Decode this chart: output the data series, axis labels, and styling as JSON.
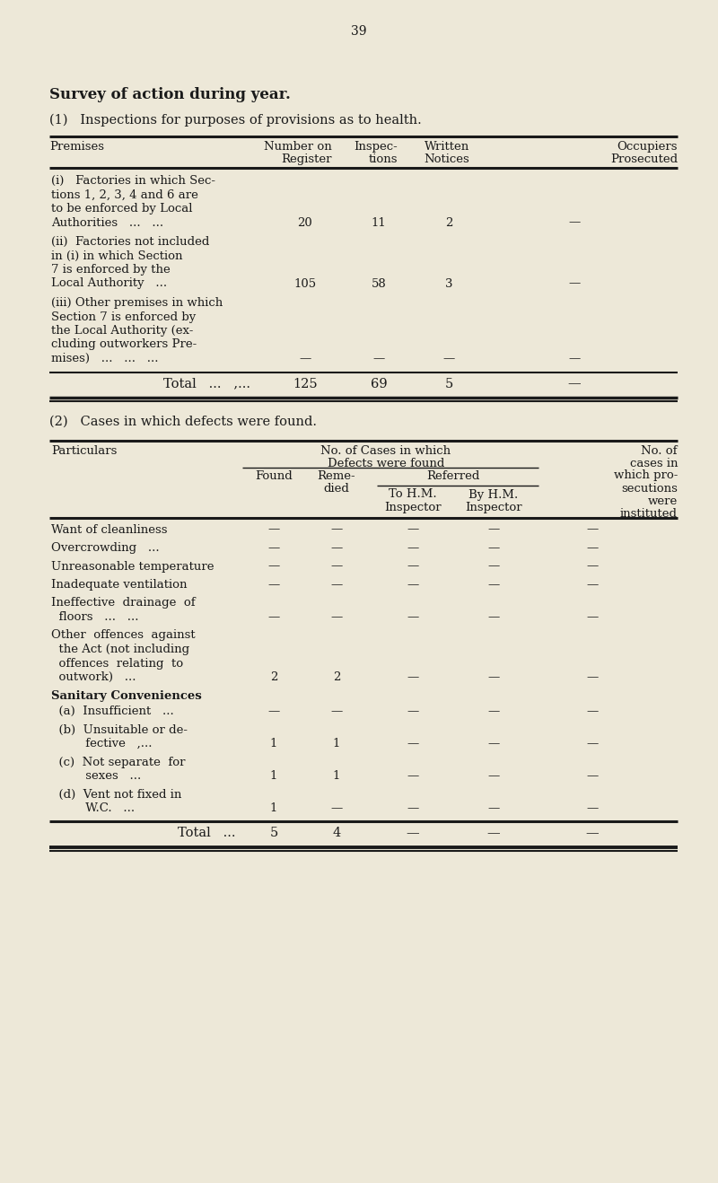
{
  "page_number": "39",
  "bg_color": "#ede8d8",
  "text_color": "#1a1a1a",
  "title": "Survey of action during year.",
  "section1_heading": "(1)   Inspections for purposes of provisions as to health.",
  "section2_heading": "(2)   Cases in which defects were found.",
  "table1_rows": [
    {
      "label_lines": [
        "(i)   Factories in which Sec-",
        "tions 1, 2, 3, 4 and 6 are",
        "to be enforced by Local",
        "Authorities   ...   ..."
      ],
      "values": [
        "20",
        "11",
        "2",
        "—"
      ]
    },
    {
      "label_lines": [
        "(ii)  Factories not included",
        "in (i) in which Section",
        "7 is enforced by the",
        "Local Authority   ..."
      ],
      "values": [
        "105",
        "58",
        "3",
        "—"
      ]
    },
    {
      "label_lines": [
        "(iii) Other premises in which",
        "Section 7 is enforced by",
        "the Local Authority (ex-",
        "cluding outworkers Pre-",
        "mises)   ...   ...   ..."
      ],
      "values": [
        "—",
        "—",
        "—",
        "—"
      ]
    }
  ],
  "table1_total_label": "Total   ...   ,...",
  "table1_total_values": [
    "125",
    "69",
    "5",
    "—"
  ],
  "table2_rows": [
    {
      "label_lines": [
        "Want of cleanliness"
      ],
      "values": [
        "—",
        "—",
        "—",
        "—",
        "—"
      ]
    },
    {
      "label_lines": [
        "Overcrowding   ..."
      ],
      "values": [
        "—",
        "—",
        "—",
        "—",
        "—"
      ]
    },
    {
      "label_lines": [
        "Unreasonable temperature"
      ],
      "values": [
        "—",
        "—",
        "—",
        "—",
        "—"
      ]
    },
    {
      "label_lines": [
        "Inadequate ventilation"
      ],
      "values": [
        "—",
        "—",
        "—",
        "—",
        "—"
      ]
    },
    {
      "label_lines": [
        "Ineffective  drainage  of",
        "  floors   ...   ..."
      ],
      "values": [
        "—",
        "—",
        "—",
        "—",
        "—"
      ]
    },
    {
      "label_lines": [
        "Other  offences  against",
        "  the Act (not including",
        "  offences  relating  to",
        "  outwork)   ..."
      ],
      "values": [
        "2",
        "2",
        "—",
        "—",
        "—"
      ]
    },
    {
      "label_lines": [
        "  (a)  Insufficient   ..."
      ],
      "values": [
        "—",
        "—",
        "—",
        "—",
        "—"
      ]
    },
    {
      "label_lines": [
        "  (b)  Unsuitable or de-",
        "         fective   ,..."
      ],
      "values": [
        "1",
        "1",
        "—",
        "—",
        "—"
      ]
    },
    {
      "label_lines": [
        "  (c)  Not separate  for",
        "         sexes   ..."
      ],
      "values": [
        "1",
        "1",
        "—",
        "—",
        "—"
      ]
    },
    {
      "label_lines": [
        "  (d)  Vent not fixed in",
        "         W.C.   ..."
      ],
      "values": [
        "1",
        "—",
        "—",
        "—",
        "—"
      ]
    }
  ],
  "table2_total_label": "Total   ...",
  "table2_total_values": [
    "5",
    "4",
    "—",
    "—",
    "—"
  ],
  "lmargin": 55,
  "rmargin": 755,
  "figw": 8.0,
  "figh": 13.18,
  "dpi": 100
}
